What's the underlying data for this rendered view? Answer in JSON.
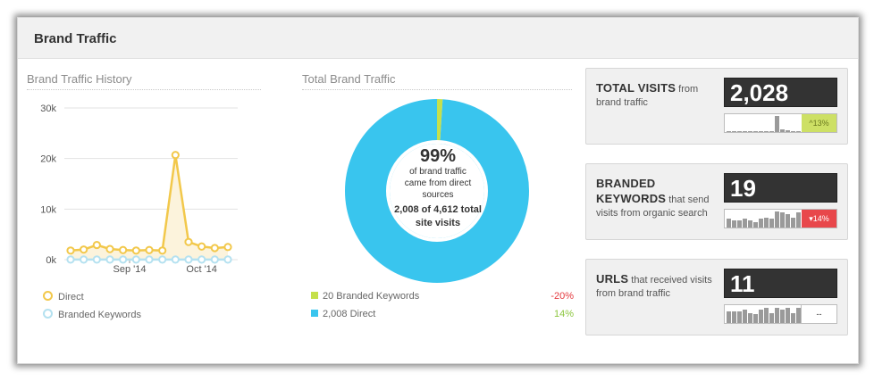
{
  "panel": {
    "title": "Brand Traffic"
  },
  "history": {
    "title": "Brand Traffic History",
    "legend": [
      "Direct",
      "Branded Keywords"
    ]
  },
  "chart_data": {
    "type": "line",
    "title": "Brand Traffic History",
    "y_ticks": [
      "30k",
      "20k",
      "10k",
      "0k"
    ],
    "ylim": [
      0,
      30000
    ],
    "x_tick_labels": [
      "Sep '14",
      "Oct '14"
    ],
    "series": [
      {
        "name": "Direct",
        "color": "#f2c84b",
        "values": [
          1800,
          2000,
          2900,
          2100,
          1900,
          1800,
          1900,
          1800,
          20700,
          3500,
          2600,
          2300,
          2500
        ]
      },
      {
        "name": "Branded Keywords",
        "color": "#b4e1f0",
        "values": [
          20,
          20,
          20,
          20,
          20,
          20,
          20,
          20,
          20,
          20,
          20,
          20,
          20
        ]
      }
    ],
    "grid": true
  },
  "total": {
    "title": "Total Brand Traffic",
    "percent": "99%",
    "line1": "of brand traffic",
    "line2": "came from direct",
    "line3": "sources",
    "line4": "2,008 of 4,612 total",
    "line5": "site visits",
    "donut": {
      "slices": [
        {
          "label": "Branded Keywords",
          "value": 20,
          "color": "#c5e04b"
        },
        {
          "label": "Direct",
          "value": 2008,
          "color": "#39c5ee"
        }
      ]
    },
    "legend": [
      {
        "label": "20 Branded Keywords",
        "change": "-20%",
        "color": "#c5e04b",
        "change_color": "#e4393e"
      },
      {
        "label": "2,008 Direct",
        "change": "14%",
        "color": "#39c5ee",
        "change_color": "#8cc63f"
      }
    ]
  },
  "metrics": [
    {
      "title": "TOTAL VISITS",
      "desc": " from brand traffic",
      "value": "2,028",
      "badge": "^13%",
      "badge_type": "up",
      "bars": [
        0.05,
        0.05,
        0.05,
        0.05,
        0.05,
        0.05,
        0.05,
        0.05,
        0.05,
        0.95,
        0.15,
        0.1,
        0.05,
        0.05
      ]
    },
    {
      "title": "BRANDED KEYWORDS",
      "desc": " that send visits from organic search",
      "value": "19",
      "badge": "▾14%",
      "badge_type": "down",
      "bars": [
        0.5,
        0.4,
        0.4,
        0.5,
        0.4,
        0.3,
        0.5,
        0.6,
        0.5,
        0.95,
        0.9,
        0.8,
        0.6,
        0.9
      ]
    },
    {
      "title": "URLS",
      "desc": " that received visits from brand traffic",
      "value": "11",
      "badge": "--",
      "badge_type": "neutral",
      "bars": [
        0.7,
        0.7,
        0.7,
        0.8,
        0.6,
        0.5,
        0.8,
        0.9,
        0.6,
        0.9,
        0.8,
        0.9,
        0.6,
        0.9
      ]
    }
  ]
}
